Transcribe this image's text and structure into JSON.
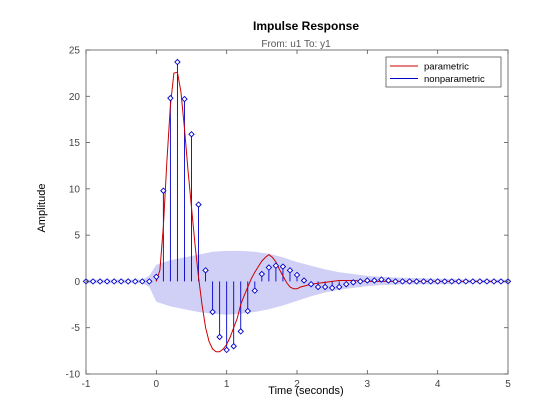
{
  "chart_data": {
    "type": "line",
    "title": "Impulse Response",
    "subtitle": "From: u1  To: y1",
    "xlabel": "Time (seconds)",
    "ylabel": "Amplitude",
    "xlim": [
      -1,
      5
    ],
    "ylim": [
      -10,
      25
    ],
    "xticks": [
      "-1",
      "0",
      "1",
      "2",
      "3",
      "4",
      "5"
    ],
    "yticks": [
      "-10",
      "-5",
      "0",
      "5",
      "10",
      "15",
      "20",
      "25"
    ],
    "grid": false,
    "legend_position": "top-right",
    "colors": {
      "parametric": "#cc0000",
      "nonparametric": "#0000cc",
      "confidence_band": "#c8c8f5",
      "axes": "#555555"
    },
    "series": [
      {
        "name": "parametric",
        "style": "line",
        "x": [
          0,
          0.05,
          0.1,
          0.15,
          0.2,
          0.25,
          0.3,
          0.35,
          0.4,
          0.45,
          0.5,
          0.55,
          0.6,
          0.65,
          0.7,
          0.75,
          0.8,
          0.85,
          0.9,
          0.95,
          1.0,
          1.05,
          1.1,
          1.15,
          1.2,
          1.25,
          1.3,
          1.35,
          1.4,
          1.45,
          1.5,
          1.55,
          1.6,
          1.65,
          1.7,
          1.75,
          1.8,
          1.85,
          1.9,
          1.95,
          2.0,
          2.05,
          2.1,
          2.15,
          2.2,
          2.3,
          2.4,
          2.5,
          2.6,
          2.7,
          2.8,
          3.0,
          3.2,
          3.5,
          4.0,
          4.5,
          5.0
        ],
        "y": [
          0,
          1.2,
          6,
          13,
          19,
          22.5,
          22.6,
          20.5,
          16.5,
          12,
          8,
          4,
          0.5,
          -2.5,
          -5,
          -6.5,
          -7.3,
          -7.6,
          -7.6,
          -7.3,
          -6.8,
          -6,
          -5,
          -4,
          -2.5,
          -1.5,
          -0.6,
          0.3,
          1.0,
          1.6,
          2.2,
          2.6,
          2.9,
          2.6,
          2.1,
          1.3,
          0.6,
          -0.1,
          -0.6,
          -0.8,
          -0.8,
          -0.6,
          -0.5,
          -0.4,
          -0.3,
          -0.2,
          -0.1,
          0,
          0.1,
          0.1,
          0.1,
          0,
          0,
          0,
          0,
          0,
          0
        ]
      },
      {
        "name": "nonparametric",
        "style": "stem",
        "x": [
          -1,
          -0.9,
          -0.8,
          -0.7,
          -0.6,
          -0.5,
          -0.4,
          -0.3,
          -0.2,
          -0.1,
          0,
          0.1,
          0.2,
          0.3,
          0.4,
          0.5,
          0.6,
          0.7,
          0.8,
          0.9,
          1.0,
          1.1,
          1.2,
          1.3,
          1.4,
          1.5,
          1.6,
          1.7,
          1.8,
          1.9,
          2.0,
          2.1,
          2.2,
          2.3,
          2.4,
          2.5,
          2.6,
          2.7,
          2.8,
          2.9,
          3.0,
          3.1,
          3.2,
          3.3,
          3.4,
          3.5,
          3.6,
          3.7,
          3.8,
          3.9,
          4.0,
          4.1,
          4.2,
          4.3,
          4.4,
          4.5,
          4.6,
          4.7,
          4.8,
          4.9,
          5.0
        ],
        "y": [
          0,
          0,
          0,
          0,
          0,
          0,
          0,
          0,
          0,
          0,
          0.5,
          9.8,
          19.8,
          23.7,
          19.7,
          15.9,
          8.3,
          1.2,
          -3.3,
          -6.0,
          -7.4,
          -7.0,
          -5.4,
          -3.2,
          -1.0,
          0.8,
          1.5,
          1.7,
          1.6,
          1.2,
          0.7,
          0.1,
          -0.3,
          -0.6,
          -0.6,
          -0.7,
          -0.6,
          -0.3,
          -0.1,
          0,
          0.1,
          0.1,
          0.2,
          0.1,
          0,
          0,
          0,
          0,
          0,
          0,
          0,
          0,
          0,
          0,
          0,
          0,
          0,
          0,
          0,
          0,
          0
        ]
      }
    ],
    "confidence_band": {
      "x": [
        -1,
        -0.5,
        -0.2,
        -0.1,
        0,
        0.2,
        0.4,
        0.6,
        0.8,
        1.0,
        1.2,
        1.4,
        1.6,
        1.8,
        2.0,
        2.2,
        2.4,
        2.6,
        2.8,
        3.0,
        3.2,
        3.5,
        4.0,
        4.5,
        5.0
      ],
      "upper": [
        0.2,
        0.2,
        0.2,
        0.6,
        1.8,
        2.3,
        2.6,
        2.9,
        3.2,
        3.3,
        3.3,
        3.2,
        3.0,
        2.6,
        2.1,
        1.7,
        1.3,
        1.0,
        0.8,
        0.6,
        0.5,
        0.4,
        0.3,
        0.2,
        0.2
      ],
      "lower": [
        -0.2,
        -0.2,
        -0.2,
        -0.6,
        -2.2,
        -2.7,
        -3.0,
        -3.3,
        -3.5,
        -3.6,
        -3.5,
        -3.3,
        -3.0,
        -2.6,
        -2.1,
        -1.6,
        -1.2,
        -0.9,
        -0.7,
        -0.5,
        -0.4,
        -0.3,
        -0.3,
        -0.2,
        -0.2
      ]
    }
  }
}
